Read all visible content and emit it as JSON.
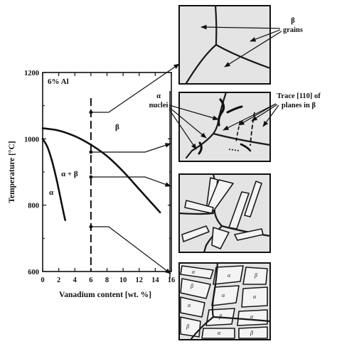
{
  "plot": {
    "y_axis_title": "Temperature [°C]",
    "x_axis_title": "Vanadium content [wt. %]",
    "composition_label": "6% Al",
    "y_ticks": [
      "1200",
      "1000",
      "800",
      "600"
    ],
    "x_ticks": [
      "0",
      "2",
      "4",
      "6",
      "8",
      "10",
      "12",
      "14",
      "16"
    ],
    "phase_labels": {
      "beta": "β",
      "alpha_beta": "α + β",
      "alpha": "α"
    }
  },
  "annotations": {
    "beta_grains": [
      "β",
      "grains"
    ],
    "alpha_nuclei": [
      "α",
      "nuclei"
    ],
    "trace": [
      "Trace [110] of",
      "planes in β"
    ]
  },
  "micro_labels": {
    "alpha": "α",
    "beta": "β"
  },
  "chart_data": {
    "type": "line",
    "title": "",
    "xlabel": "Vanadium content [wt. %]",
    "ylabel": "Temperature [°C]",
    "xlim": [
      0,
      16
    ],
    "ylim": [
      600,
      1200
    ],
    "series": [
      {
        "name": "",
        "x": [
          0,
          2,
          4,
          6,
          8,
          10,
          12,
          14.6
        ],
        "y": [
          1032,
          1025,
          1008,
          982,
          948,
          902,
          848,
          778
        ]
      },
      {
        "name": "",
        "x": [
          0,
          0.6,
          1.2,
          1.8,
          2.4,
          2.8
        ],
        "y": [
          1000,
          975,
          930,
          870,
          800,
          755
        ]
      }
    ],
    "annotations": {
      "composition_line_x": 6,
      "cooling_points_y": [
        1080,
        960,
        885,
        735
      ]
    }
  }
}
